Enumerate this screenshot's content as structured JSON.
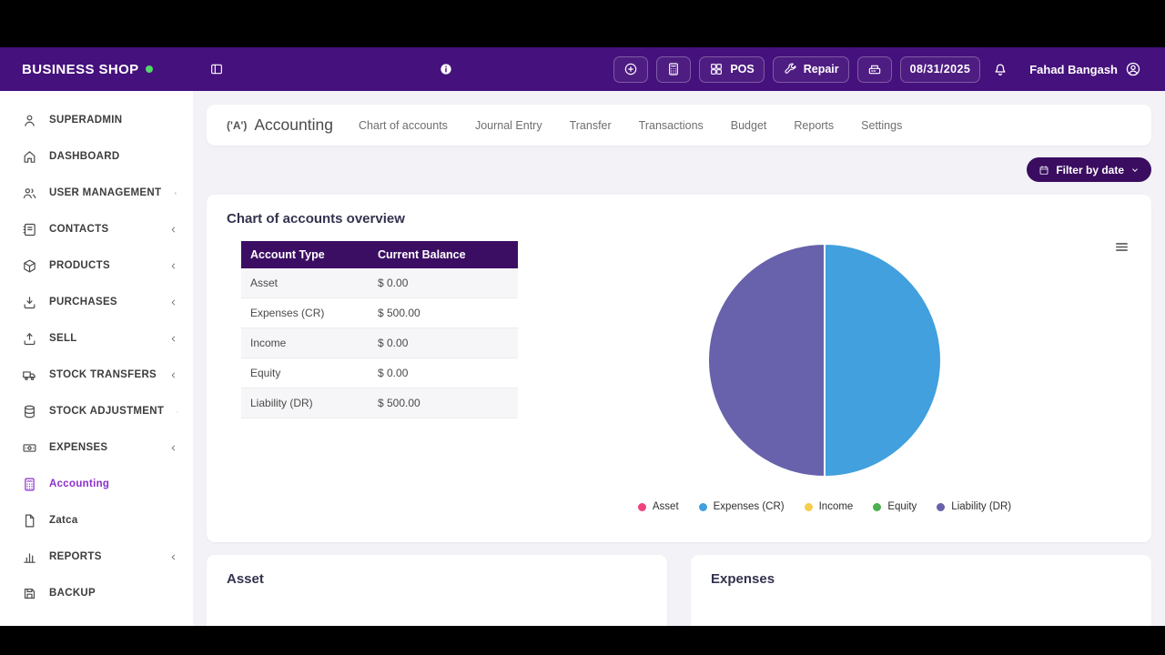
{
  "topbar": {
    "brand": "BUSINESS SHOP",
    "pos": "POS",
    "repair": "Repair",
    "date": "08/31/2025",
    "user": "Fahad Bangash"
  },
  "sidebar": {
    "items": [
      {
        "label": "SUPERADMIN",
        "icon": "person",
        "chevron": false,
        "active": false
      },
      {
        "label": "DASHBOARD",
        "icon": "home",
        "chevron": false,
        "active": false
      },
      {
        "label": "USER MANAGEMENT",
        "icon": "users",
        "chevron": true,
        "active": false
      },
      {
        "label": "CONTACTS",
        "icon": "contacts",
        "chevron": true,
        "active": false
      },
      {
        "label": "PRODUCTS",
        "icon": "box",
        "chevron": true,
        "active": false
      },
      {
        "label": "PURCHASES",
        "icon": "download",
        "chevron": true,
        "active": false
      },
      {
        "label": "SELL",
        "icon": "upload",
        "chevron": true,
        "active": false
      },
      {
        "label": "STOCK TRANSFERS",
        "icon": "truck",
        "chevron": true,
        "active": false
      },
      {
        "label": "STOCK ADJUSTMENT",
        "icon": "database",
        "chevron": true,
        "active": false
      },
      {
        "label": "EXPENSES",
        "icon": "banknote",
        "chevron": true,
        "active": false
      },
      {
        "label": "Accounting",
        "icon": "calculator",
        "chevron": false,
        "active": true
      },
      {
        "label": "Zatca",
        "icon": "document",
        "chevron": false,
        "active": false
      },
      {
        "label": "REPORTS",
        "icon": "chart-bars",
        "chevron": true,
        "active": false
      },
      {
        "label": "BACKUP",
        "icon": "backup",
        "chevron": false,
        "active": false
      }
    ]
  },
  "page": {
    "module_title": "Accounting",
    "module_icon_glyph": "('A')",
    "tabs": [
      "Chart of accounts",
      "Journal Entry",
      "Transfer",
      "Transactions",
      "Budget",
      "Reports",
      "Settings"
    ],
    "filter_button": "Filter by date"
  },
  "overview_card": {
    "title": "Chart of accounts overview",
    "table": {
      "headers": [
        "Account Type",
        "Current Balance"
      ],
      "rows": [
        [
          "Asset",
          "$ 0.00"
        ],
        [
          "Expenses (CR)",
          "$ 500.00"
        ],
        [
          "Income",
          "$ 0.00"
        ],
        [
          "Equity",
          "$ 0.00"
        ],
        [
          "Liability (DR)",
          "$ 500.00"
        ]
      ]
    }
  },
  "chart_data": {
    "type": "pie",
    "title": "Chart of accounts overview",
    "labels": [
      "Asset",
      "Expenses (CR)",
      "Income",
      "Equity",
      "Liability (DR)"
    ],
    "values": [
      0,
      500,
      0,
      0,
      500
    ],
    "colors": [
      "#f0437c",
      "#41a0dd",
      "#f7cd4c",
      "#4caf50",
      "#6762ab"
    ],
    "legend_position": "bottom"
  },
  "bottom_cards": [
    {
      "title": "Asset"
    },
    {
      "title": "Expenses"
    }
  ],
  "theme": {
    "navbar": "#45117c",
    "table_header": "#3b0e63",
    "filter_button": "#3a0d61",
    "active_link": "#8b2fc9",
    "brand_dot": "#52d869",
    "background": "#f3f2f7"
  }
}
